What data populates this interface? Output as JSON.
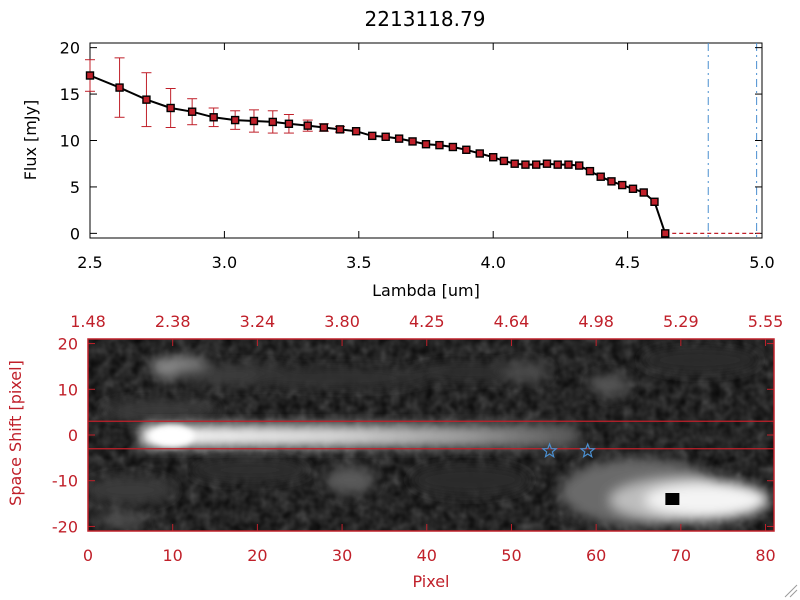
{
  "chart_data": [
    {
      "type": "line",
      "title": "2213118.79",
      "xlabel": "Lambda [um]",
      "ylabel": "Flux [mJy]",
      "xlim": [
        2.5,
        5.0
      ],
      "ylim": [
        -0.5,
        20.5
      ],
      "xticks": [
        "2.5",
        "3.0",
        "3.5",
        "4.0",
        "4.5",
        "5.0"
      ],
      "yticks": [
        "0",
        "5",
        "10",
        "15",
        "20"
      ],
      "grid": false,
      "line_color": "#000000",
      "marker_color": "#c0202a",
      "errorbar_color": "#c0202a",
      "series": [
        {
          "x": [
            2.5,
            2.61,
            2.71,
            2.8,
            2.88,
            2.96,
            3.04,
            3.11,
            3.18,
            3.24,
            3.31,
            3.37,
            3.43,
            3.49,
            3.55,
            3.6,
            3.65,
            3.7,
            3.75,
            3.8,
            3.85,
            3.9,
            3.95,
            4.0,
            4.04,
            4.08,
            4.12,
            4.16,
            4.2,
            4.24,
            4.28,
            4.32,
            4.36,
            4.4,
            4.44,
            4.48,
            4.52,
            4.56,
            4.6,
            4.64
          ],
          "y": [
            17.0,
            15.7,
            14.4,
            13.5,
            13.1,
            12.5,
            12.2,
            12.1,
            12.0,
            11.8,
            11.6,
            11.4,
            11.2,
            11.0,
            10.5,
            10.4,
            10.2,
            9.9,
            9.6,
            9.5,
            9.3,
            9.0,
            8.6,
            8.2,
            7.8,
            7.5,
            7.4,
            7.4,
            7.5,
            7.4,
            7.4,
            7.3,
            6.7,
            6.1,
            5.6,
            5.2,
            4.8,
            4.4,
            3.4,
            0.0
          ],
          "yerr": [
            1.7,
            3.2,
            2.9,
            2.1,
            1.4,
            1.0,
            1.0,
            1.2,
            1.2,
            1.0,
            0.6,
            0.4,
            0.3,
            0.2,
            0.2,
            0.2,
            0.2,
            0.2,
            0.2,
            0.2,
            0.2,
            0.2,
            0.2,
            0.2,
            0.2,
            0.2,
            0.2,
            0.2,
            0.2,
            0.2,
            0.2,
            0.2,
            0.2,
            0.2,
            0.2,
            0.2,
            0.2,
            0.2,
            0.2,
            0.2
          ]
        }
      ],
      "zero_segment": {
        "x": [
          4.64,
          5.0
        ],
        "y": [
          0,
          0
        ]
      },
      "vlines": [
        {
          "x": 4.8,
          "color": "#4a8fd0",
          "style": "dashed"
        },
        {
          "x": 4.98,
          "color": "#4a8fd0",
          "style": "dashed"
        }
      ]
    },
    {
      "type": "heatmap",
      "xlabel": "Pixel",
      "ylabel": "Space Shift [pixel]",
      "xlim": [
        0,
        81
      ],
      "ylim": [
        -21,
        21
      ],
      "xticks": [
        "0",
        "10",
        "20",
        "30",
        "40",
        "50",
        "60",
        "70",
        "80"
      ],
      "yticks": [
        "-20",
        "-10",
        "0",
        "10",
        "20"
      ],
      "top_axis_ticks": [
        "1.48",
        "2.38",
        "3.24",
        "3.80",
        "4.25",
        "4.64",
        "4.98",
        "5.29",
        "5.55"
      ],
      "colormap": "grayscale",
      "axis_color": "#c0202a",
      "extraction_lines": {
        "y": [
          3,
          -3
        ],
        "color": "#c0202a"
      },
      "star_markers": [
        {
          "x": 54.5,
          "y": -3.5,
          "color": "#4a8fd0"
        },
        {
          "x": 59,
          "y": -3.5,
          "color": "#4a8fd0"
        }
      ],
      "square_marker": {
        "x": 69,
        "y": -14,
        "color": "#000000"
      }
    }
  ]
}
